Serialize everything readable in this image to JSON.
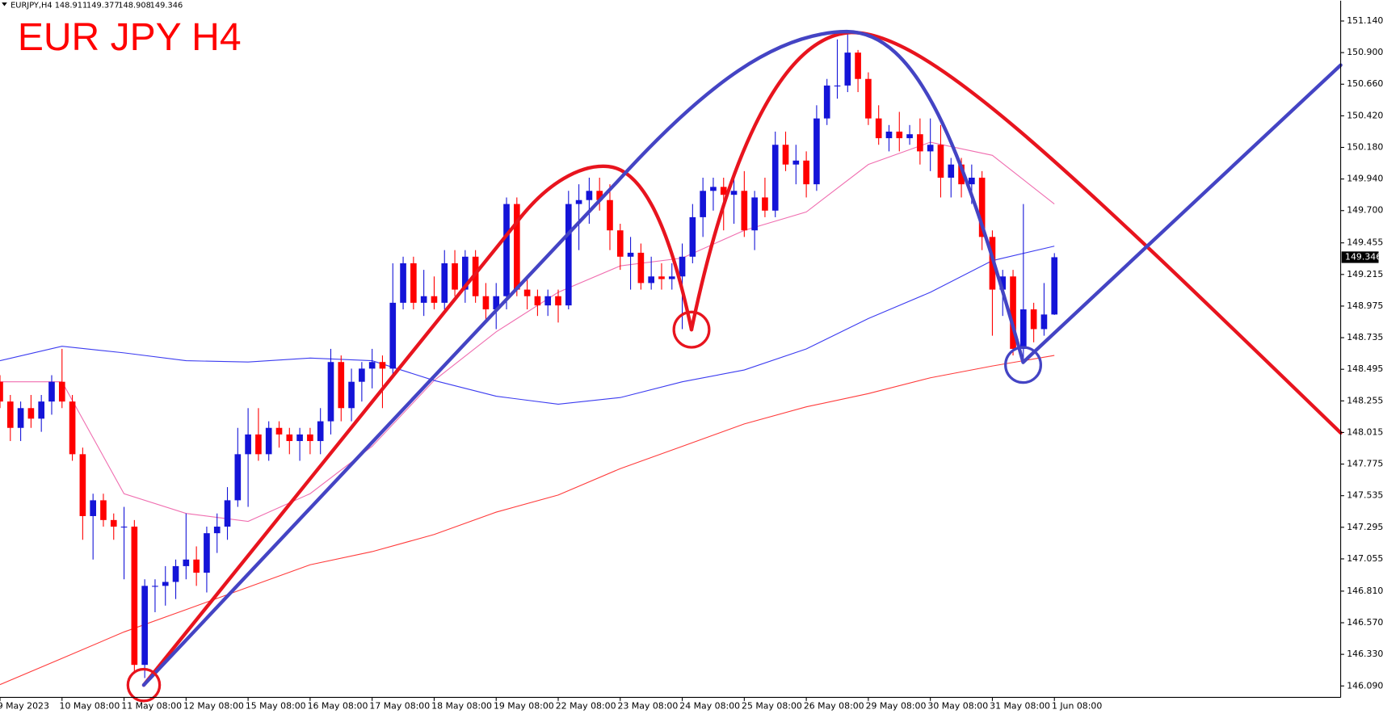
{
  "chart_data": {
    "type": "candlestick",
    "symbol": "EURJPY,H4",
    "title": "EUR JPY H4",
    "categories": [
      "9 May 2023",
      null,
      null,
      null,
      null,
      null,
      "10 May 08:00",
      null,
      null,
      null,
      null,
      null,
      "11 May 08:00",
      null,
      null,
      null,
      null,
      null,
      "12 May 08:00",
      null,
      null,
      null,
      null,
      null,
      "15 May 08:00",
      null,
      null,
      null,
      null,
      null,
      "16 May 08:00",
      null,
      null,
      null,
      null,
      null,
      "17 May 08:00",
      null,
      null,
      null,
      null,
      null,
      "18 May 08:00",
      null,
      null,
      null,
      null,
      null,
      "19 May 08:00",
      null,
      null,
      null,
      null,
      null,
      "22 May 08:00",
      null,
      null,
      null,
      null,
      null,
      "23 May 08:00",
      null,
      null,
      null,
      null,
      null,
      "24 May 08:00",
      null,
      null,
      null,
      null,
      null,
      "25 May 08:00",
      null,
      null,
      null,
      null,
      null,
      "26 May 08:00",
      null,
      null,
      null,
      null,
      null,
      "29 May 08:00",
      null,
      null,
      null,
      null,
      null,
      "30 May 08:00",
      null,
      null,
      null,
      null,
      null,
      "31 May 08:00",
      null,
      null,
      null,
      null,
      null,
      "1 Jun 08:00"
    ],
    "open": [
      148.4,
      148.25,
      148.05,
      148.2,
      148.12,
      148.25,
      148.4,
      148.25,
      147.85,
      147.38,
      147.5,
      147.35,
      147.3,
      147.3,
      146.25,
      146.85,
      146.85,
      146.88,
      147.0,
      147.05,
      146.95,
      147.25,
      147.3,
      147.5,
      147.85,
      148.0,
      147.85,
      148.05,
      148.0,
      147.95,
      148.0,
      147.95,
      148.1,
      148.55,
      148.2,
      148.4,
      148.5,
      148.55,
      148.5,
      149.0,
      149.3,
      149.0,
      149.05,
      149.0,
      149.3,
      149.1,
      149.35,
      149.05,
      148.95,
      149.05,
      149.75,
      149.1,
      149.05,
      148.98,
      149.05,
      148.98,
      149.75,
      149.78,
      149.85,
      149.78,
      149.55,
      149.35,
      149.38,
      149.15,
      149.2,
      149.18,
      149.2,
      149.35,
      149.65,
      149.85,
      149.88,
      149.82,
      149.85,
      149.55,
      149.8,
      149.7,
      150.2,
      150.05,
      150.08,
      149.9,
      150.4,
      150.65,
      150.65,
      150.9,
      150.7,
      150.4,
      150.25,
      150.3,
      150.25,
      150.28,
      150.15,
      150.2,
      149.95,
      150.05,
      149.9,
      149.95,
      149.5,
      149.1,
      149.2,
      148.65,
      148.95,
      148.8,
      148.911
    ],
    "high": [
      148.45,
      148.3,
      148.25,
      148.3,
      148.3,
      148.45,
      148.65,
      148.3,
      147.9,
      147.55,
      147.55,
      147.4,
      147.45,
      147.35,
      146.9,
      146.9,
      147.0,
      147.05,
      147.4,
      147.15,
      147.3,
      147.4,
      147.6,
      148.05,
      148.2,
      148.2,
      148.1,
      148.1,
      148.05,
      148.05,
      148.05,
      148.2,
      148.65,
      148.6,
      148.5,
      148.55,
      148.65,
      148.6,
      149.3,
      149.35,
      149.35,
      149.25,
      149.2,
      149.4,
      149.4,
      149.4,
      149.4,
      149.15,
      149.15,
      149.8,
      149.8,
      149.2,
      149.1,
      149.1,
      149.1,
      149.85,
      149.9,
      149.95,
      149.95,
      149.9,
      149.6,
      149.5,
      149.45,
      149.35,
      149.3,
      149.3,
      149.45,
      149.75,
      149.95,
      149.95,
      149.95,
      149.95,
      150.0,
      149.85,
      149.95,
      150.3,
      150.3,
      150.2,
      150.15,
      150.5,
      150.7,
      151.0,
      151.05,
      150.92,
      150.75,
      150.5,
      150.35,
      150.45,
      150.35,
      150.4,
      150.4,
      150.35,
      150.1,
      150.1,
      150.05,
      150.0,
      149.55,
      149.25,
      149.25,
      149.75,
      149.0,
      149.15,
      149.377
    ],
    "low": [
      148.2,
      147.95,
      147.95,
      148.05,
      148.02,
      148.15,
      148.2,
      147.8,
      147.2,
      147.05,
      147.3,
      147.2,
      146.9,
      146.2,
      146.15,
      146.65,
      146.7,
      146.75,
      146.9,
      146.85,
      146.8,
      147.1,
      147.2,
      147.45,
      147.45,
      147.8,
      147.8,
      147.9,
      147.85,
      147.8,
      147.85,
      147.85,
      148.0,
      148.1,
      148.1,
      148.25,
      148.35,
      148.2,
      148.45,
      148.95,
      148.95,
      148.9,
      148.95,
      148.95,
      149.05,
      149.0,
      149.0,
      148.85,
      148.8,
      148.95,
      149.05,
      148.95,
      148.9,
      148.9,
      148.85,
      148.95,
      149.4,
      149.6,
      149.7,
      149.4,
      149.25,
      149.1,
      149.1,
      149.1,
      149.1,
      149.1,
      148.8,
      149.3,
      149.5,
      149.7,
      149.55,
      149.6,
      149.5,
      149.4,
      149.65,
      149.65,
      150.0,
      149.9,
      149.8,
      149.85,
      150.35,
      150.55,
      150.6,
      150.6,
      150.35,
      150.2,
      150.15,
      150.15,
      150.2,
      150.05,
      150.0,
      149.8,
      149.8,
      149.8,
      149.75,
      149.4,
      148.75,
      148.9,
      148.6,
      148.55,
      148.7,
      148.75,
      148.908
    ],
    "close": [
      148.25,
      148.05,
      148.2,
      148.12,
      148.25,
      148.4,
      148.25,
      147.85,
      147.38,
      147.5,
      147.35,
      147.3,
      147.3,
      146.25,
      146.85,
      146.85,
      146.88,
      147.0,
      147.05,
      146.95,
      147.25,
      147.3,
      147.5,
      147.85,
      148.0,
      147.85,
      148.05,
      148.0,
      147.95,
      148.0,
      147.95,
      148.1,
      148.55,
      148.2,
      148.4,
      148.5,
      148.55,
      148.5,
      149.0,
      149.3,
      149.0,
      149.05,
      149.0,
      149.3,
      149.1,
      149.35,
      149.05,
      148.95,
      149.05,
      149.75,
      149.1,
      149.05,
      148.98,
      149.05,
      148.98,
      149.75,
      149.78,
      149.85,
      149.78,
      149.55,
      149.35,
      149.38,
      149.15,
      149.2,
      149.18,
      149.2,
      149.35,
      149.65,
      149.85,
      149.88,
      149.82,
      149.85,
      149.55,
      149.8,
      149.7,
      150.2,
      150.05,
      150.08,
      149.9,
      150.4,
      150.65,
      150.65,
      150.9,
      150.7,
      150.4,
      150.25,
      150.3,
      150.25,
      150.28,
      150.15,
      150.2,
      149.95,
      150.05,
      149.9,
      149.95,
      149.5,
      149.1,
      149.2,
      148.65,
      148.95,
      148.8,
      148.911,
      149.346
    ],
    "up_color": "#1414d8",
    "down_color": "#ff0000",
    "indicators": [
      {
        "color": "#f06eb0",
        "x": [
          0,
          6,
          12,
          18,
          24,
          30,
          36,
          42,
          48,
          54,
          60,
          66,
          72,
          78,
          84,
          90,
          96,
          102
        ],
        "values": [
          148.4,
          148.4,
          147.55,
          147.4,
          147.34,
          147.55,
          147.91,
          148.41,
          148.78,
          149.08,
          149.28,
          149.34,
          149.55,
          149.69,
          150.05,
          150.22,
          150.12,
          149.75
        ]
      },
      {
        "color": "#3b3bf0",
        "x": [
          0,
          6,
          12,
          18,
          24,
          30,
          36,
          42,
          48,
          54,
          60,
          66,
          72,
          78,
          84,
          90,
          96,
          102
        ],
        "values": [
          148.56,
          148.67,
          148.62,
          148.56,
          148.55,
          148.58,
          148.56,
          148.41,
          148.29,
          148.23,
          148.28,
          148.4,
          148.49,
          148.65,
          148.88,
          149.08,
          149.32,
          149.43
        ]
      },
      {
        "color": "#ff3b3b",
        "x": [
          0,
          6,
          12,
          18,
          24,
          30,
          36,
          42,
          48,
          54,
          60,
          66,
          72,
          78,
          84,
          90,
          96,
          102
        ],
        "values": [
          146.1,
          146.3,
          146.5,
          146.67,
          146.84,
          147.01,
          147.11,
          147.24,
          147.41,
          147.54,
          147.74,
          147.91,
          148.08,
          148.21,
          148.31,
          148.43,
          148.52,
          148.6
        ]
      }
    ],
    "ylim": [
      146.003,
      151.294
    ],
    "yticks": [
      {
        "value": 146.09,
        "label": "146.090"
      },
      {
        "value": 146.33,
        "label": "146.330"
      },
      {
        "value": 146.57,
        "label": "146.570"
      },
      {
        "value": 146.81,
        "label": "146.810"
      },
      147.055,
      147.295,
      147.535,
      147.775,
      148.015,
      148.255,
      148.495,
      148.735,
      148.975,
      149.215,
      149.455,
      {
        "value": 149.7,
        "label": "149.700"
      },
      {
        "value": 149.94,
        "label": "149.940"
      },
      {
        "value": 150.18,
        "label": "150.180"
      },
      {
        "value": 150.42,
        "label": "150.420"
      },
      {
        "value": 150.66,
        "label": "150.660"
      },
      {
        "value": 150.9,
        "label": "150.900"
      },
      {
        "value": 151.14,
        "label": "151.140"
      }
    ],
    "grid": false
  }
}
